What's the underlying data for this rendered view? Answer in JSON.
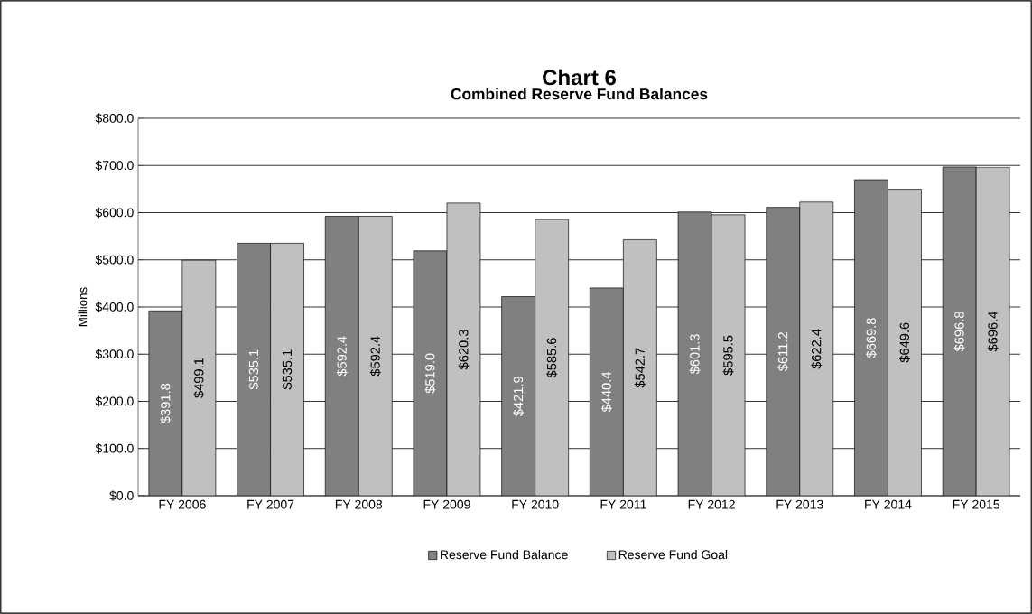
{
  "chart_data": {
    "type": "bar",
    "title": "Chart 6",
    "subtitle": "Combined Reserve Fund Balances",
    "ylabel": "Millions",
    "categories": [
      "FY 2006",
      "FY 2007",
      "FY 2008",
      "FY 2009",
      "FY 2010",
      "FY 2011",
      "FY 2012",
      "FY 2013",
      "FY 2014",
      "FY 2015"
    ],
    "series": [
      {
        "name": "Reserve Fund Balance",
        "color": "#808080",
        "values": [
          391.8,
          535.1,
          592.4,
          519.0,
          421.9,
          440.4,
          601.3,
          611.2,
          669.8,
          696.8
        ],
        "value_labels": [
          "$391.8",
          "$535.1",
          "$592.4",
          "$519.0",
          "$421.9",
          "$440.4",
          "$601.3",
          "$611.2",
          "$669.8",
          "$696.8"
        ]
      },
      {
        "name": "Reserve Fund Goal",
        "color": "#c0c0c0",
        "values": [
          499.1,
          535.1,
          592.4,
          620.3,
          585.6,
          542.7,
          595.5,
          622.4,
          649.6,
          696.4
        ],
        "value_labels": [
          "$499.1",
          "$535.1",
          "$592.4",
          "$620.3",
          "$585.6",
          "$542.7",
          "$595.5",
          "$622.4",
          "$649.6",
          "$696.4"
        ]
      }
    ],
    "ylim": [
      0,
      800
    ],
    "yticks": [
      {
        "value": 0,
        "label": "$0.0"
      },
      {
        "value": 100,
        "label": "$100.0"
      },
      {
        "value": 200,
        "label": "$200.0"
      },
      {
        "value": 300,
        "label": "$300.0"
      },
      {
        "value": 400,
        "label": "$400.0"
      },
      {
        "value": 500,
        "label": "$500.0"
      },
      {
        "value": 600,
        "label": "$600.0"
      },
      {
        "value": 700,
        "label": "$700.0"
      },
      {
        "value": 800,
        "label": "$800.0"
      }
    ],
    "grid": "y",
    "legend": "bottom"
  }
}
